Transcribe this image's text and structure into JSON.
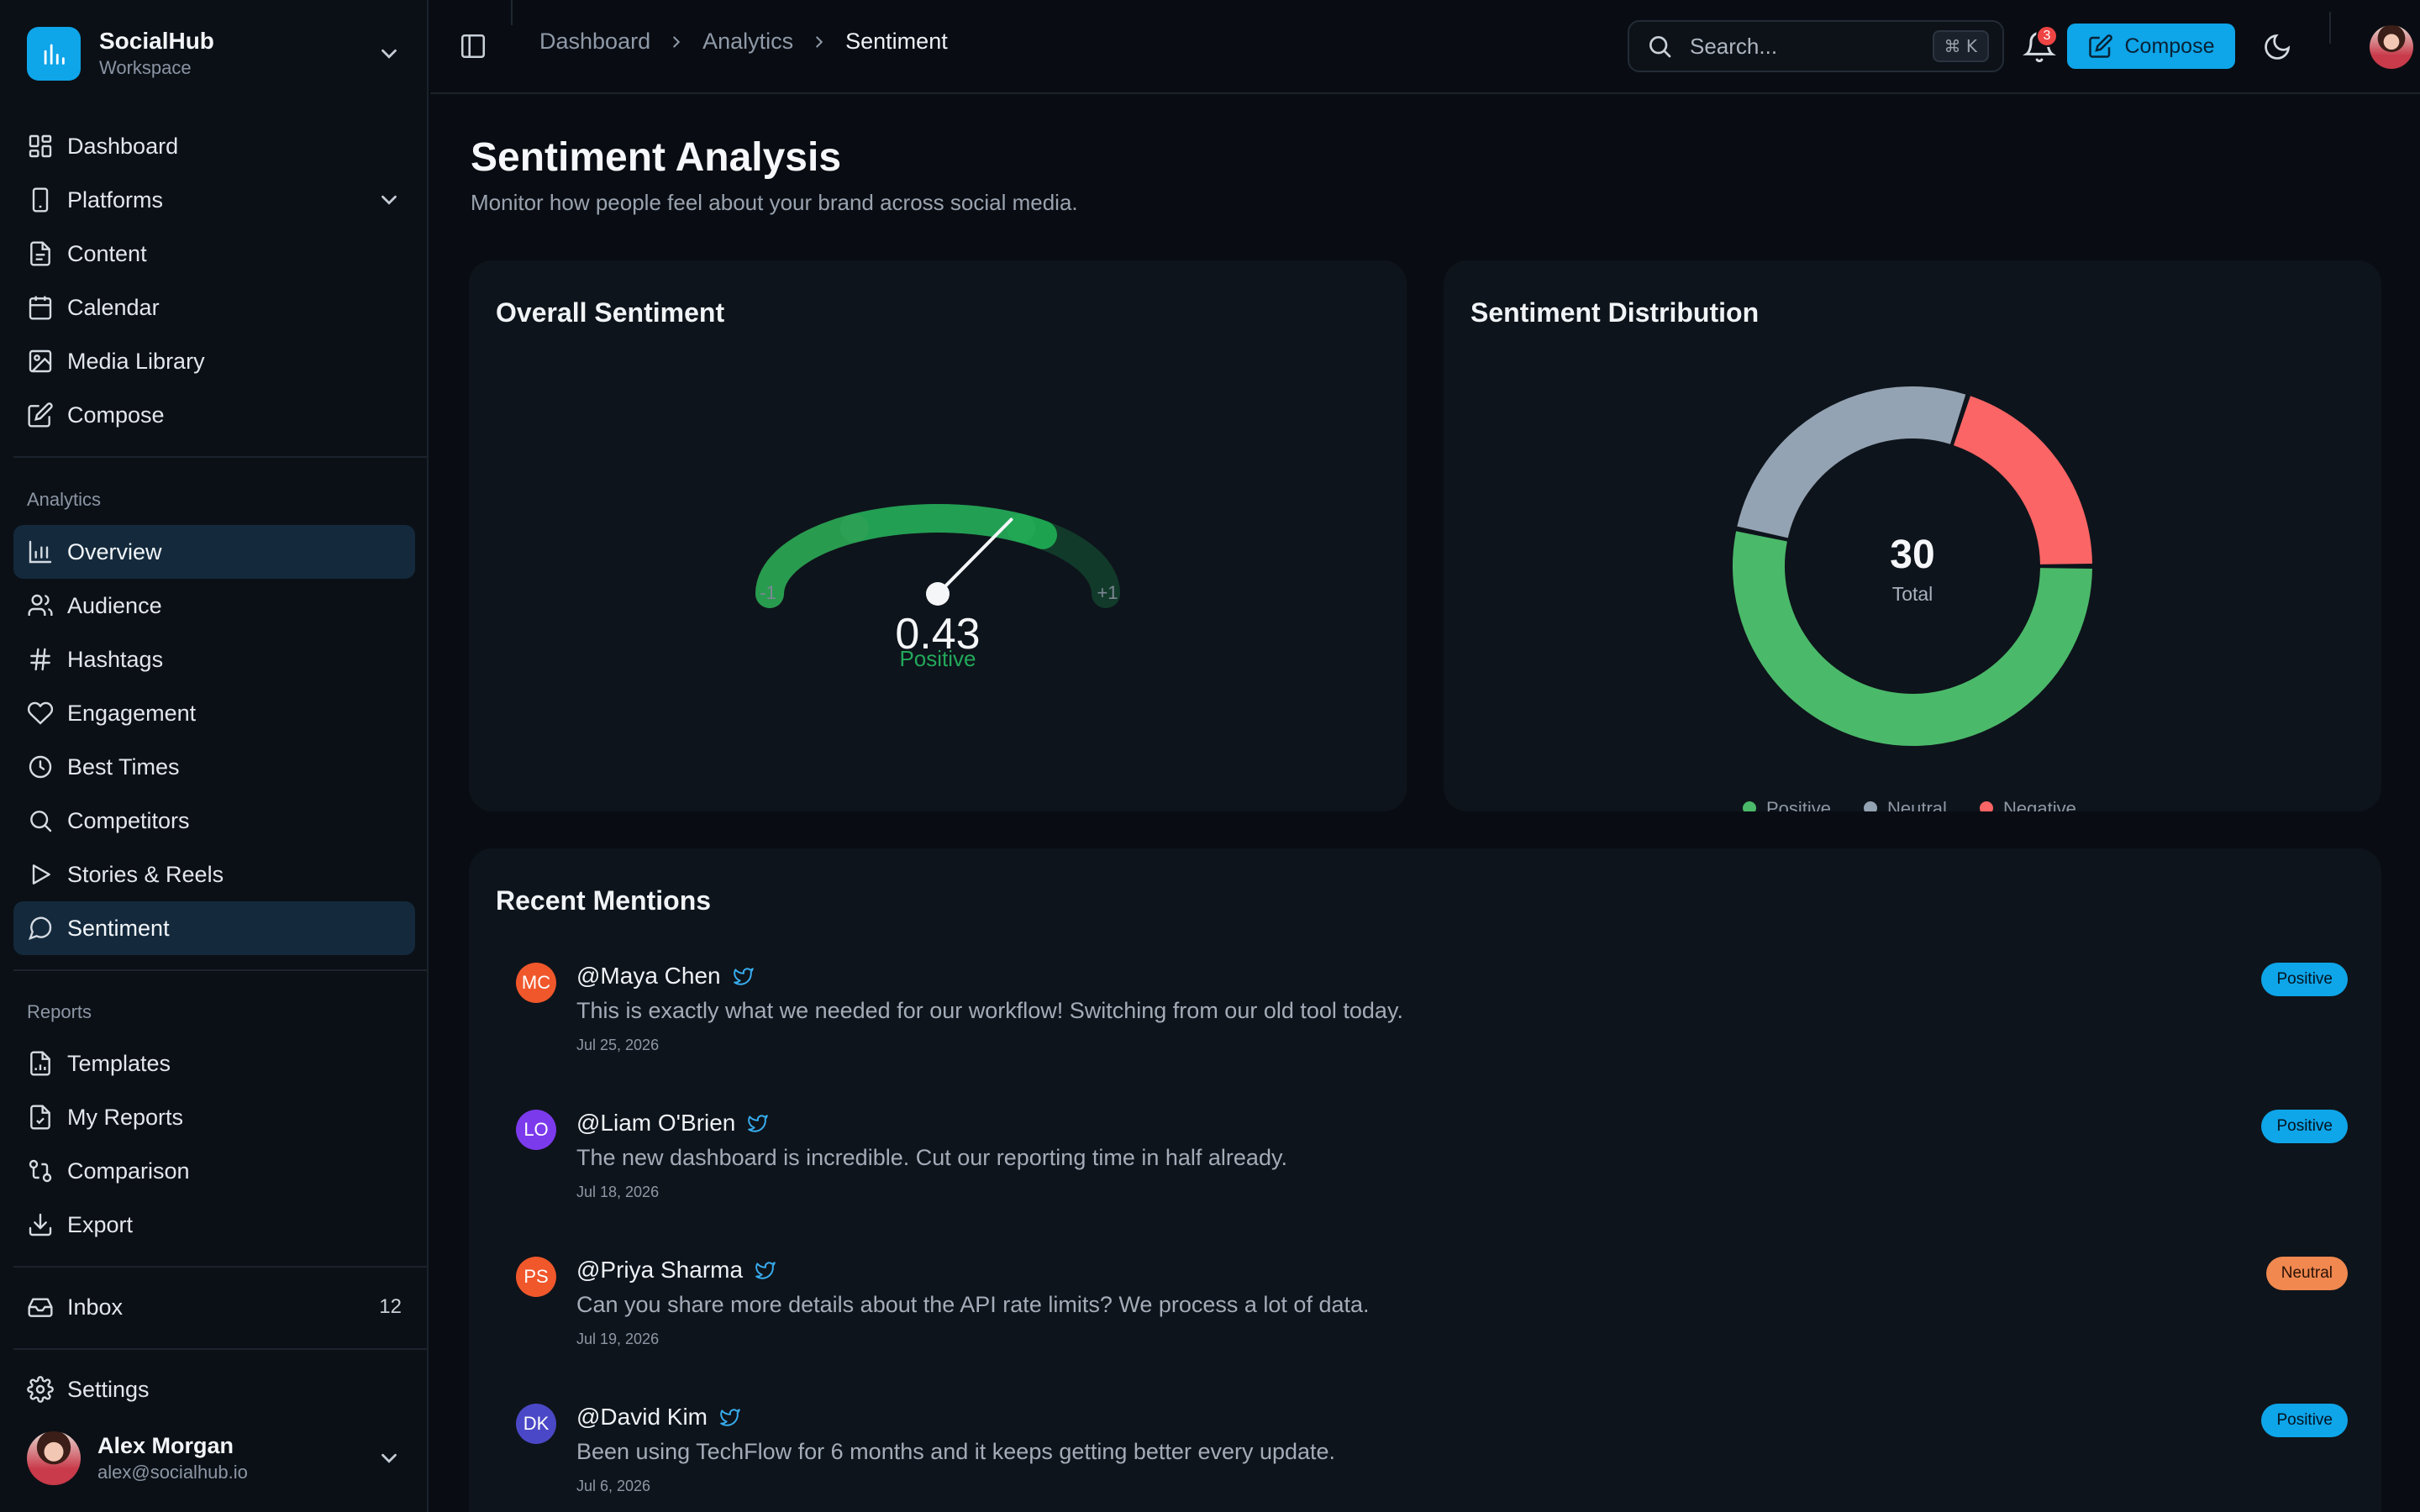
{
  "workspace": {
    "name": "SocialHub",
    "subtitle": "Workspace"
  },
  "nav_main": [
    {
      "label": "Dashboard",
      "icon": "dashboard-icon"
    },
    {
      "label": "Platforms",
      "icon": "smartphone-icon",
      "expandable": true
    },
    {
      "label": "Content",
      "icon": "file-icon"
    },
    {
      "label": "Calendar",
      "icon": "calendar-icon"
    },
    {
      "label": "Media Library",
      "icon": "image-icon"
    },
    {
      "label": "Compose",
      "icon": "edit-icon"
    }
  ],
  "analytics_section": {
    "label": "Analytics",
    "items": [
      {
        "label": "Overview",
        "icon": "bar-chart-icon",
        "active": true
      },
      {
        "label": "Audience",
        "icon": "users-icon"
      },
      {
        "label": "Hashtags",
        "icon": "hash-icon"
      },
      {
        "label": "Engagement",
        "icon": "heart-icon"
      },
      {
        "label": "Best Times",
        "icon": "clock-icon"
      },
      {
        "label": "Competitors",
        "icon": "search-icon"
      },
      {
        "label": "Stories & Reels",
        "icon": "play-icon"
      },
      {
        "label": "Sentiment",
        "icon": "message-circle-icon",
        "active": true
      }
    ]
  },
  "reports_section": {
    "label": "Reports",
    "items": [
      {
        "label": "Templates",
        "icon": "file-chart-icon"
      },
      {
        "label": "My Reports",
        "icon": "file-check-icon"
      },
      {
        "label": "Comparison",
        "icon": "git-compare-icon"
      },
      {
        "label": "Export",
        "icon": "download-icon"
      }
    ]
  },
  "inbox": {
    "label": "Inbox",
    "count": "12"
  },
  "settings": {
    "label": "Settings"
  },
  "user": {
    "name": "Alex Morgan",
    "email": "alex@socialhub.io"
  },
  "breadcrumb": [
    "Dashboard",
    "Analytics",
    "Sentiment"
  ],
  "search": {
    "placeholder": "Search...",
    "shortcut": "⌘ K"
  },
  "notifications": {
    "count": "3"
  },
  "compose_button": "Compose",
  "page": {
    "title": "Sentiment Analysis",
    "subtitle": "Monitor how people feel about your brand across social media."
  },
  "overall": {
    "title": "Overall Sentiment",
    "score": 0.43,
    "score_label": "0.43",
    "status": "Positive",
    "min_label": "-1",
    "max_label": "+1",
    "colors": {
      "negative": "#ef4444",
      "neutral": "#94a3b8",
      "positive": "#22c55e"
    }
  },
  "distribution": {
    "title": "Sentiment Distribution",
    "total": "30",
    "total_label": "Total",
    "legend": [
      "Positive",
      "Neutral",
      "Negative"
    ]
  },
  "chart_data": {
    "type": "pie",
    "title": "Sentiment Distribution",
    "categories": [
      "Positive",
      "Neutral",
      "Negative"
    ],
    "values": [
      16,
      8,
      6
    ],
    "colors": [
      "#4bb96a",
      "#94a3b3",
      "#fb6565"
    ],
    "legend": "bottom"
  },
  "mentions": {
    "title": "Recent Mentions",
    "items": [
      {
        "initials": "MC",
        "avatar_color": "#f0572b",
        "name": "@Maya Chen",
        "text": "This is exactly what we needed for our workflow! Switching from our old tool today.",
        "date": "Jul 25, 2026",
        "sentiment": "Positive"
      },
      {
        "initials": "LO",
        "avatar_color": "#7c3aed",
        "name": "@Liam O'Brien",
        "text": "The new dashboard is incredible. Cut our reporting time in half already.",
        "date": "Jul 18, 2026",
        "sentiment": "Positive"
      },
      {
        "initials": "PS",
        "avatar_color": "#f0572b",
        "name": "@Priya Sharma",
        "text": "Can you share more details about the API rate limits? We process a lot of data.",
        "date": "Jul 19, 2026",
        "sentiment": "Neutral"
      },
      {
        "initials": "DK",
        "avatar_color": "#4b48c7",
        "name": "@David Kim",
        "text": "Been using TechFlow for 6 months and it keeps getting better every update.",
        "date": "Jul 6, 2026",
        "sentiment": "Positive"
      }
    ]
  }
}
